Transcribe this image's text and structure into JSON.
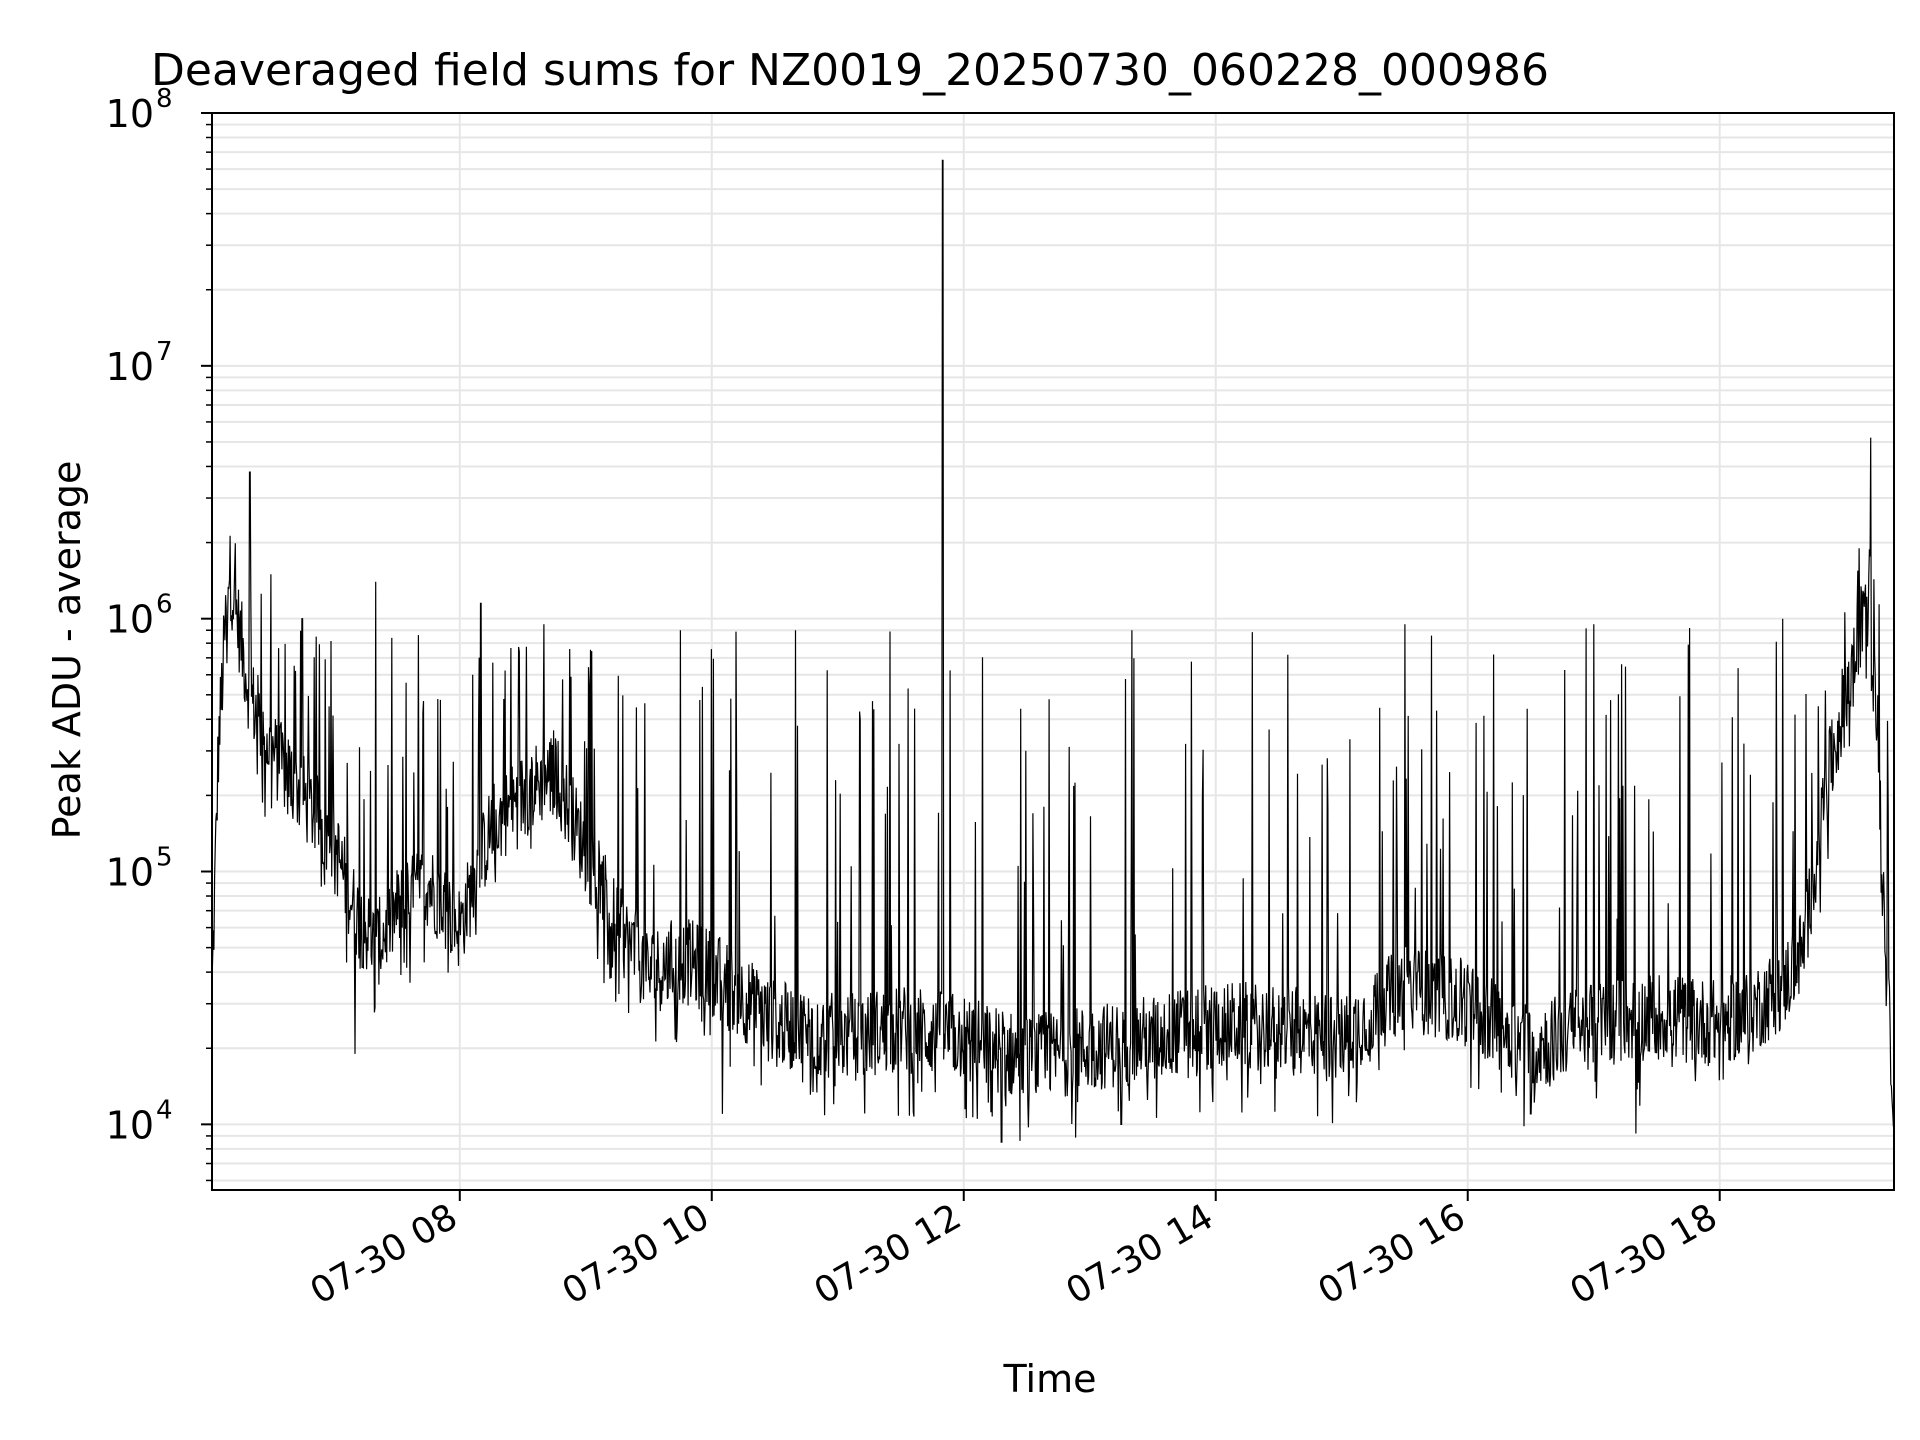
{
  "chart_data": {
    "type": "line",
    "title": "Deaveraged field sums for NZ0019_20250730_060228_000986",
    "xlabel": "Time",
    "ylabel": "Peak ADU - average",
    "yscale": "log",
    "grid": true,
    "legend": "none",
    "line_color": "#000000",
    "grid_color": "#e6e6e6",
    "xlim": [
      "2025-07-30 06:02",
      "2025-07-30 19:23"
    ],
    "ylim": [
      5500,
      100000000
    ],
    "x_ticks": [
      {
        "value": "2025-07-30 08:00",
        "label": "07-30 08"
      },
      {
        "value": "2025-07-30 10:00",
        "label": "07-30 10"
      },
      {
        "value": "2025-07-30 12:00",
        "label": "07-30 12"
      },
      {
        "value": "2025-07-30 14:00",
        "label": "07-30 14"
      },
      {
        "value": "2025-07-30 16:00",
        "label": "07-30 16"
      },
      {
        "value": "2025-07-30 18:00",
        "label": "07-30 18"
      }
    ],
    "y_ticks": [
      {
        "value": 10000,
        "base": "10",
        "exp": "4"
      },
      {
        "value": 100000,
        "base": "10",
        "exp": "5"
      },
      {
        "value": 1000000,
        "base": "10",
        "exp": "6"
      },
      {
        "value": 10000000,
        "base": "10",
        "exp": "7"
      },
      {
        "value": 100000000,
        "base": "10",
        "exp": "8"
      }
    ],
    "series": [
      {
        "baseline_x": [
          "2025-07-30 06:02",
          "2025-07-30 06:05",
          "2025-07-30 06:10",
          "2025-07-30 06:15",
          "2025-07-30 06:20",
          "2025-07-30 06:30",
          "2025-07-30 06:45",
          "2025-07-30 07:00",
          "2025-07-30 07:10",
          "2025-07-30 07:20",
          "2025-07-30 07:30",
          "2025-07-30 07:45",
          "2025-07-30 08:00",
          "2025-07-30 08:15",
          "2025-07-30 08:30",
          "2025-07-30 08:45",
          "2025-07-30 09:00",
          "2025-07-30 09:15",
          "2025-07-30 09:30",
          "2025-07-30 09:45",
          "2025-07-30 10:00",
          "2025-07-30 10:30",
          "2025-07-30 11:00",
          "2025-07-30 11:30",
          "2025-07-30 12:00",
          "2025-07-30 12:30",
          "2025-07-30 13:00",
          "2025-07-30 13:30",
          "2025-07-30 14:00",
          "2025-07-30 14:30",
          "2025-07-30 15:00",
          "2025-07-30 15:30",
          "2025-07-30 16:00",
          "2025-07-30 16:30",
          "2025-07-30 17:00",
          "2025-07-30 17:30",
          "2025-07-30 18:00",
          "2025-07-30 18:15",
          "2025-07-30 18:30",
          "2025-07-30 18:40",
          "2025-07-30 18:50",
          "2025-07-30 19:00",
          "2025-07-30 19:05",
          "2025-07-30 19:10",
          "2025-07-30 19:15",
          "2025-07-30 19:20",
          "2025-07-30 19:23"
        ],
        "baseline_y": [
          32000,
          300000,
          1600000,
          900000,
          500000,
          300000,
          200000,
          130000,
          70000,
          50000,
          70000,
          90000,
          60000,
          150000,
          200000,
          250000,
          120000,
          60000,
          40000,
          45000,
          40000,
          25000,
          22000,
          24000,
          22000,
          18000,
          20000,
          22000,
          25000,
          24000,
          22000,
          35000,
          30000,
          20000,
          25000,
          27000,
          25000,
          28000,
          35000,
          50000,
          200000,
          500000,
          700000,
          1300000,
          400000,
          30000,
          13000
        ],
        "spikes": [
          {
            "x": "2025-07-30 06:20",
            "y": 3800000
          },
          {
            "x": "2025-07-30 06:30",
            "y": 1500000
          },
          {
            "x": "2025-07-30 06:45",
            "y": 1000000
          },
          {
            "x": "2025-07-30 07:20",
            "y": 1400000
          },
          {
            "x": "2025-07-30 08:10",
            "y": 1150000
          },
          {
            "x": "2025-07-30 08:40",
            "y": 950000
          },
          {
            "x": "2025-07-30 09:45",
            "y": 900000
          },
          {
            "x": "2025-07-30 10:40",
            "y": 900000
          },
          {
            "x": "2025-07-30 11:50",
            "y": 65000000
          },
          {
            "x": "2025-07-30 13:20",
            "y": 900000
          },
          {
            "x": "2025-07-30 15:30",
            "y": 950000
          },
          {
            "x": "2025-07-30 17:00",
            "y": 950000
          },
          {
            "x": "2025-07-30 18:30",
            "y": 1000000
          },
          {
            "x": "2025-07-30 19:12",
            "y": 5200000
          }
        ],
        "dips": [
          {
            "x": "2025-07-30 07:10",
            "y": 19000
          },
          {
            "x": "2025-07-30 10:05",
            "y": 11000
          },
          {
            "x": "2025-07-30 12:18",
            "y": 8500
          },
          {
            "x": "2025-07-30 13:15",
            "y": 10000
          },
          {
            "x": "2025-07-30 16:30",
            "y": 11000
          },
          {
            "x": "2025-07-30 17:20",
            "y": 9200
          },
          {
            "x": "2025-07-30 19:23",
            "y": 9500
          }
        ]
      }
    ]
  }
}
